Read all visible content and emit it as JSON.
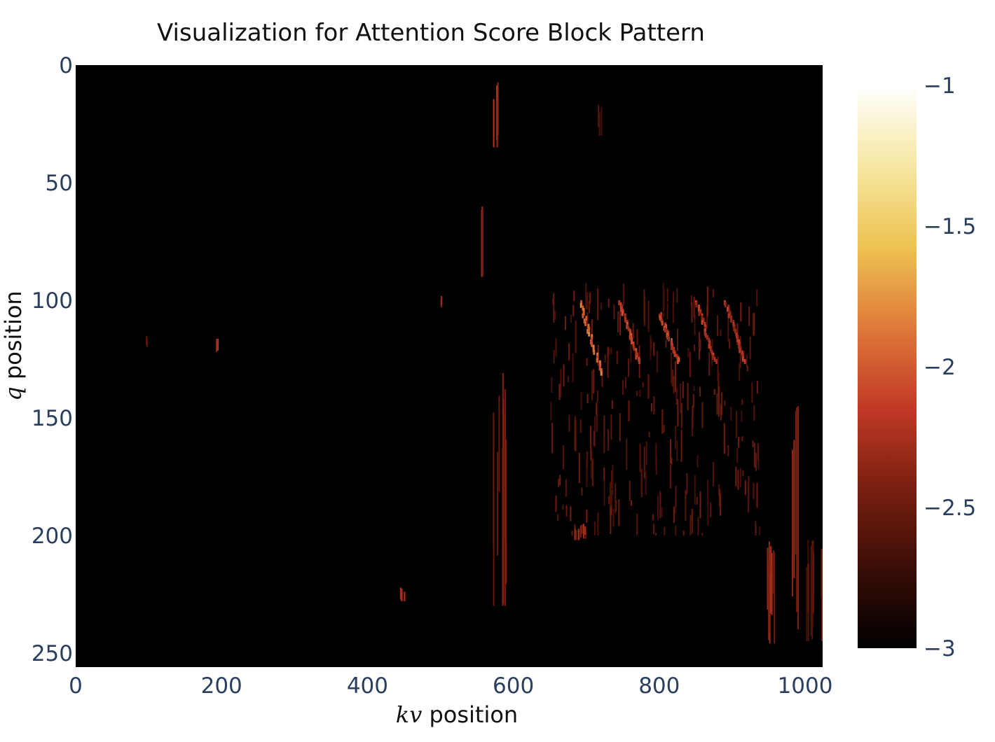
{
  "chart_data": {
    "type": "heatmap",
    "title": "Visualization for Attention Score Block Pattern",
    "xlabel": {
      "var": "kv",
      "text": " position"
    },
    "ylabel": {
      "var": "q",
      "text": " position"
    },
    "xlim": [
      0,
      1024
    ],
    "ylim": [
      256,
      0
    ],
    "x_ticks": [
      0,
      200,
      400,
      600,
      800,
      1000
    ],
    "y_ticks": [
      0,
      50,
      100,
      150,
      200,
      250
    ],
    "colorbar": {
      "range": [
        -3,
        -1
      ],
      "ticks": [
        -1,
        -1.5,
        -2,
        -2.5,
        -3
      ],
      "tick_labels": [
        "−1",
        "−1.5",
        "−2",
        "−2.5",
        "−3"
      ],
      "colorscale": [
        "#000000",
        "#3a0d06",
        "#7a1f10",
        "#c23a26",
        "#df7a3a",
        "#eec352",
        "#f6e7a2",
        "#ffffff"
      ]
    },
    "background_value": -3,
    "features": [
      {
        "kind": "column",
        "kv": [
          570,
          580
        ],
        "q": [
          5,
          35
        ],
        "value": -2.4
      },
      {
        "kind": "column",
        "kv": [
          555,
          560
        ],
        "q": [
          55,
          90
        ],
        "value": -2.5
      },
      {
        "kind": "column",
        "kv": [
          715,
          720
        ],
        "q": [
          15,
          30
        ],
        "value": -2.7
      },
      {
        "kind": "column",
        "kv": [
          498,
          502
        ],
        "q": [
          98,
          103
        ],
        "value": -2.4
      },
      {
        "kind": "column",
        "kv": [
          95,
          100
        ],
        "q": [
          115,
          120
        ],
        "value": -2.6
      },
      {
        "kind": "column",
        "kv": [
          190,
          195
        ],
        "q": [
          115,
          122
        ],
        "value": -2.4
      },
      {
        "kind": "block",
        "kv": [
          650,
          940
        ],
        "q": [
          92,
          200
        ],
        "value": -2.7
      },
      {
        "kind": "diagonal",
        "kv": [
          690,
          720
        ],
        "q": [
          100,
          130
        ],
        "value": -2.1
      },
      {
        "kind": "diagonal",
        "kv": [
          745,
          770
        ],
        "q": [
          100,
          125
        ],
        "value": -2.3
      },
      {
        "kind": "diagonal",
        "kv": [
          800,
          825
        ],
        "q": [
          105,
          125
        ],
        "value": -2.3
      },
      {
        "kind": "diagonal",
        "kv": [
          850,
          875
        ],
        "q": [
          100,
          125
        ],
        "value": -2.4
      },
      {
        "kind": "diagonal",
        "kv": [
          890,
          915
        ],
        "q": [
          100,
          125
        ],
        "value": -2.4
      },
      {
        "kind": "column",
        "kv": [
          570,
          590
        ],
        "q": [
          130,
          230
        ],
        "value": -2.6
      },
      {
        "kind": "column",
        "kv": [
          440,
          450
        ],
        "q": [
          222,
          228
        ],
        "value": -2.4
      },
      {
        "kind": "column",
        "kv": [
          945,
          960
        ],
        "q": [
          200,
          246
        ],
        "value": -2.5
      },
      {
        "kind": "column",
        "kv": [
          980,
          990
        ],
        "q": [
          130,
          240
        ],
        "value": -2.5
      },
      {
        "kind": "column",
        "kv": [
          1000,
          1024
        ],
        "q": [
          200,
          245
        ],
        "value": -2.7
      },
      {
        "kind": "column",
        "kv": [
          680,
          700
        ],
        "q": [
          195,
          202
        ],
        "value": -2.5
      }
    ]
  }
}
